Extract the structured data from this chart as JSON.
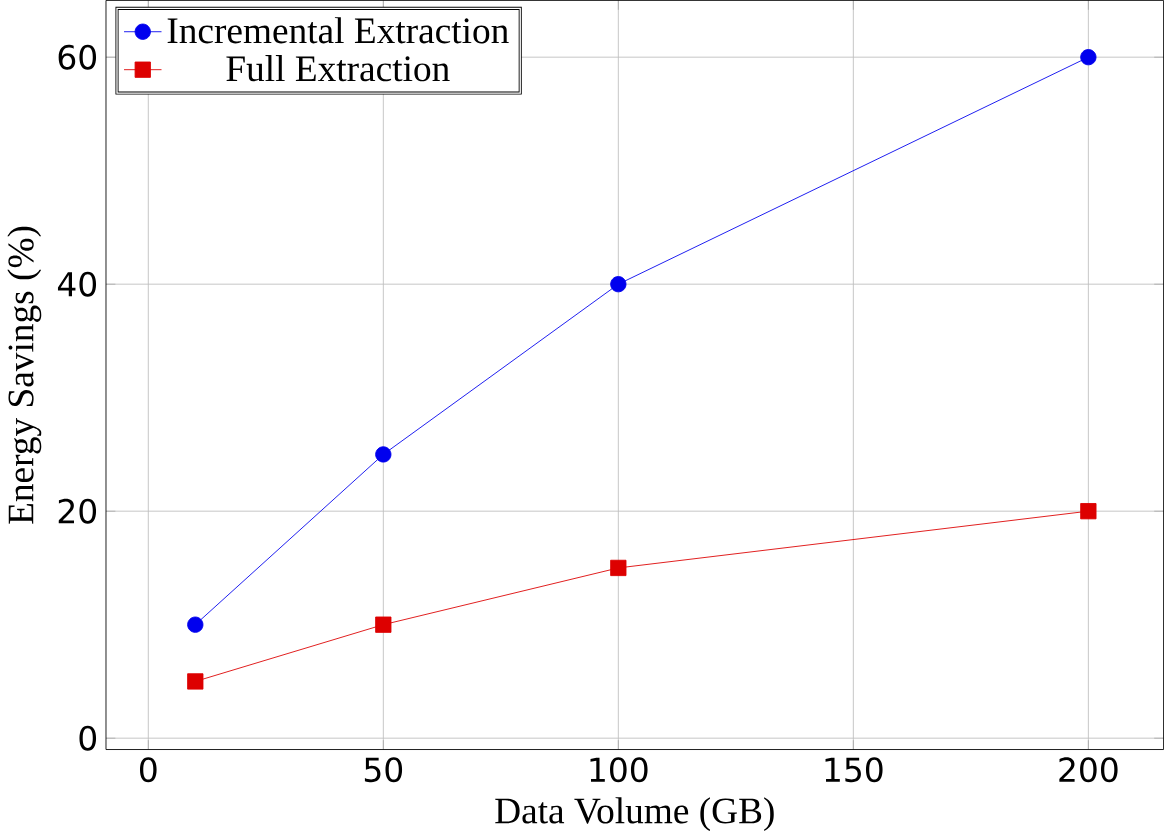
{
  "chart_data": {
    "type": "line",
    "xlabel": "Data Volume (GB)",
    "ylabel": "Energy Savings (%)",
    "x": [
      10,
      50,
      100,
      200
    ],
    "series": [
      {
        "name": "Incremental Extraction",
        "color": "#0000ee",
        "marker": "circle",
        "values": [
          10,
          25,
          40,
          60
        ]
      },
      {
        "name": "Full Extraction",
        "color": "#dd0000",
        "marker": "square",
        "values": [
          5,
          10,
          15,
          20
        ]
      }
    ],
    "xlim": [
      -9,
      216
    ],
    "ylim": [
      -1,
      65
    ],
    "xticks": [
      0,
      50,
      100,
      150,
      200
    ],
    "yticks": [
      0,
      20,
      40,
      60
    ],
    "grid": true,
    "legend": "top left",
    "line_style": "solid"
  }
}
